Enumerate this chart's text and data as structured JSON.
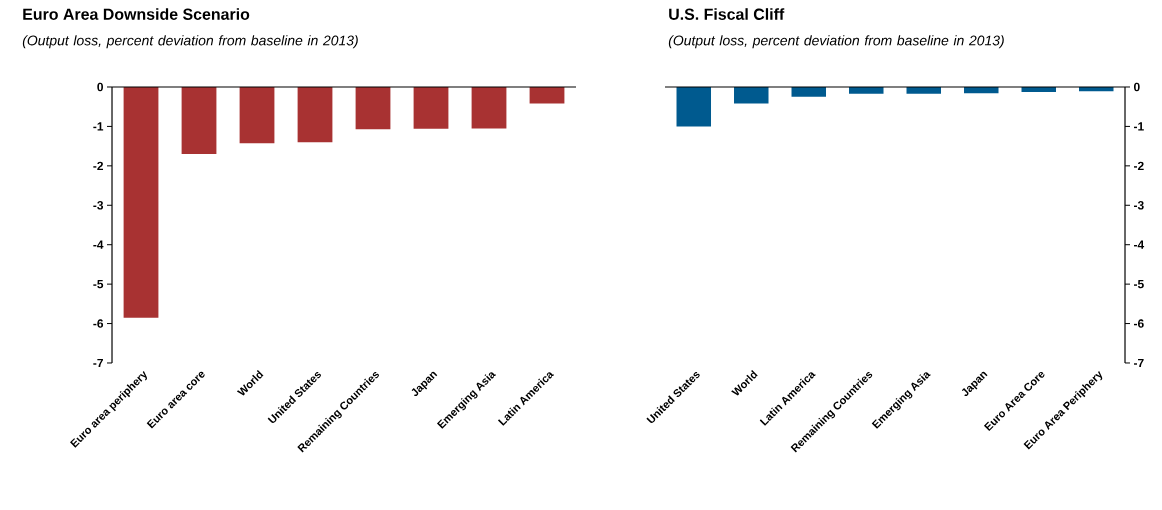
{
  "chart_data": [
    {
      "type": "bar",
      "title": "Euro Area Downside Scenario",
      "subtitle": "(Output loss, percent deviation from baseline in 2013)",
      "categories": [
        "Euro area periphery",
        "Euro area core",
        "World",
        "United States",
        "Remaining Countries",
        "Japan",
        "Emerging Asia",
        "Latin America"
      ],
      "values": [
        -5.85,
        -1.7,
        -1.43,
        -1.4,
        -1.07,
        -1.06,
        -1.05,
        -0.42
      ],
      "color": "#a83232",
      "ylim": [
        -7,
        0
      ],
      "yticks": [
        0,
        -1,
        -2,
        -3,
        -4,
        -5,
        -6,
        -7
      ],
      "grid": false
    },
    {
      "type": "bar",
      "title": "U.S. Fiscal Cliff",
      "subtitle": "(Output loss, percent deviation from baseline in 2013)",
      "categories": [
        "United States",
        "World",
        "Latin America",
        "Remaining Countries",
        "Emerging Asia",
        "Japan",
        "Euro Area Core",
        "Euro Area Periphery"
      ],
      "values": [
        -1.0,
        -0.42,
        -0.25,
        -0.17,
        -0.17,
        -0.16,
        -0.13,
        -0.11
      ],
      "color": "#005a8f",
      "ylim": [
        -7,
        0
      ],
      "yticks": [
        0,
        -1,
        -2,
        -3,
        -4,
        -5,
        -6,
        -7
      ],
      "grid": false
    }
  ]
}
